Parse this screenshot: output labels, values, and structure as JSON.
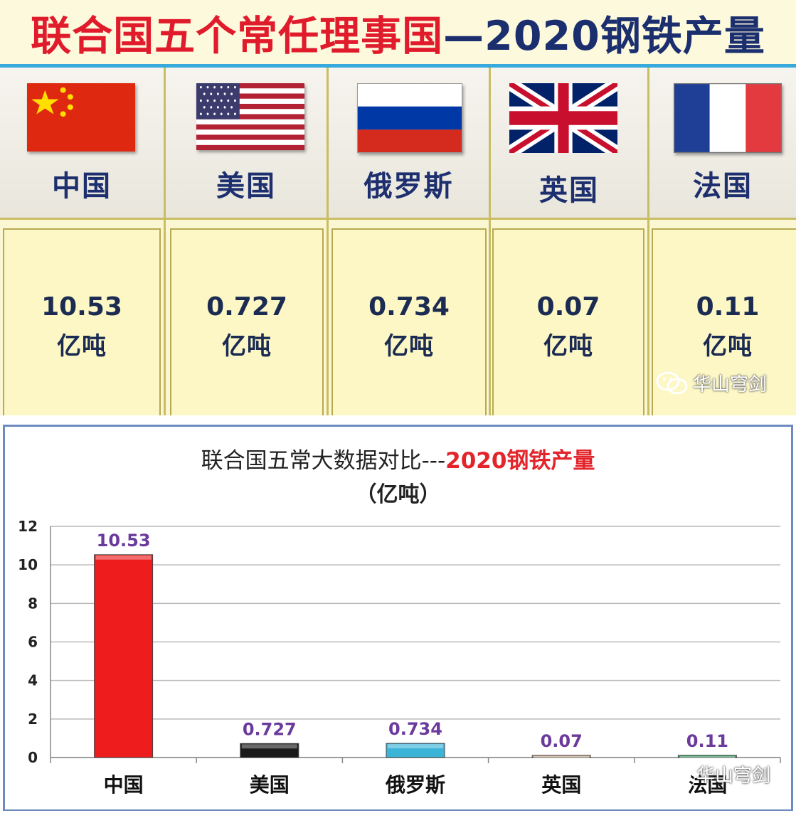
{
  "top": {
    "title_red": "联合国五个常任理事国",
    "title_blue": "—2020钢铁产量",
    "unit": "亿吨",
    "countries": [
      {
        "name": "中国",
        "value": "10.53",
        "flag": "china-flag-icon"
      },
      {
        "name": "美国",
        "value": "0.727",
        "flag": "usa-flag-icon"
      },
      {
        "name": "俄罗斯",
        "value": "0.734",
        "flag": "russia-flag-icon"
      },
      {
        "name": "英国",
        "value": "0.07",
        "flag": "uk-flag-icon"
      },
      {
        "name": "法国",
        "value": "0.11",
        "flag": "france-flag-icon"
      }
    ]
  },
  "watermark": {
    "text": "华山穹剑",
    "icon": "wechat-icon"
  },
  "chart_data": {
    "type": "bar",
    "title": "联合国五常大数据对比---",
    "title_highlight": "2020钢铁产量",
    "subtitle": "（亿吨）",
    "categories": [
      "中国",
      "美国",
      "俄罗斯",
      "英国",
      "法国"
    ],
    "values": [
      10.53,
      0.727,
      0.734,
      0.07,
      0.11
    ],
    "value_labels": [
      "10.53",
      "0.727",
      "0.734",
      "0.07",
      "0.11"
    ],
    "bar_colors": [
      "#ee1c1c",
      "#1a1a1a",
      "#3bb4d8",
      "#c9a68a",
      "#2e9a5a"
    ],
    "ylim": [
      0,
      12
    ],
    "yticks": [
      0,
      2,
      4,
      6,
      8,
      10,
      12
    ],
    "ytick_labels": [
      "0",
      "2",
      "4",
      "6",
      "8",
      "10",
      "12"
    ],
    "grid": true,
    "legend": "none",
    "label_color": "#6a3a9c"
  }
}
